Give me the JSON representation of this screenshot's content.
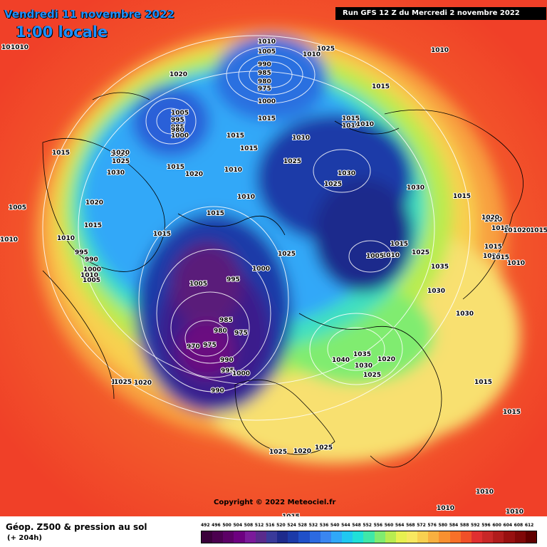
{
  "header": {
    "date_label": "Vendredi 11 novembre 2022",
    "time_label": "1:00 locale",
    "run_label": "Run GFS 12 Z du Mercredi 2 novembre 2022"
  },
  "copyright": "Copyright © 2022 Meteociel.fr",
  "legend": {
    "title": "Géop. Z500 & pression au sol",
    "subtitle": "(+ 204h)",
    "scale_values": [
      "492",
      "496",
      "500",
      "504",
      "508",
      "512",
      "516",
      "520",
      "524",
      "528",
      "532",
      "536",
      "540",
      "544",
      "548",
      "552",
      "556",
      "560",
      "564",
      "568",
      "572",
      "576",
      "580",
      "584",
      "588",
      "592",
      "596",
      "600",
      "604",
      "608",
      "612"
    ],
    "scale_colors": [
      "#3a003a",
      "#4b004f",
      "#5c0066",
      "#6d0080",
      "#7b1a9a",
      "#5a2a8c",
      "#3a3a9a",
      "#1e2a8c",
      "#1c3aa8",
      "#2050c8",
      "#2c6ae0",
      "#3a86f0",
      "#30a8f8",
      "#20c8f0",
      "#20e0d8",
      "#40e8a8",
      "#80ec70",
      "#b8ec50",
      "#e8f050",
      "#f8e860",
      "#f8d050",
      "#f8b040",
      "#f89030",
      "#f87028",
      "#f05028",
      "#e03030",
      "#c82828",
      "#b01c1c",
      "#981010",
      "#800808",
      "#600000"
    ]
  },
  "isobars": [
    {
      "text": "1010"
    },
    {
      "text": "1010"
    },
    {
      "text": "1005"
    },
    {
      "text": "990"
    },
    {
      "text": "985"
    },
    {
      "text": "980"
    },
    {
      "text": "975"
    },
    {
      "text": "1000"
    },
    {
      "text": "1020"
    },
    {
      "text": "1025"
    },
    {
      "text": "1010"
    },
    {
      "text": "1010"
    },
    {
      "text": "1015"
    },
    {
      "text": "1020"
    },
    {
      "text": "1010"
    },
    {
      "text": "1005"
    },
    {
      "text": "995"
    },
    {
      "text": "985"
    },
    {
      "text": "1000"
    },
    {
      "text": "980"
    },
    {
      "text": "1015"
    },
    {
      "text": "1015"
    },
    {
      "text": "1015"
    },
    {
      "text": "1010"
    },
    {
      "text": "1010"
    },
    {
      "text": "1015"
    },
    {
      "text": "1020"
    },
    {
      "text": "1025"
    },
    {
      "text": "1030"
    },
    {
      "text": "1015"
    },
    {
      "text": "1020"
    },
    {
      "text": "1015"
    },
    {
      "text": "1015"
    },
    {
      "text": "1010"
    },
    {
      "text": "1015"
    },
    {
      "text": "1010"
    },
    {
      "text": "1025"
    },
    {
      "text": "1025"
    },
    {
      "text": "1030"
    },
    {
      "text": "1010"
    },
    {
      "text": "1005"
    },
    {
      "text": "1020"
    },
    {
      "text": "1015"
    },
    {
      "text": "1010"
    },
    {
      "text": "995"
    },
    {
      "text": "990"
    },
    {
      "text": "1000"
    },
    {
      "text": "1005"
    },
    {
      "text": "1015"
    },
    {
      "text": "1005"
    },
    {
      "text": "995"
    },
    {
      "text": "1000"
    },
    {
      "text": "1025"
    },
    {
      "text": "1010"
    },
    {
      "text": "1005"
    },
    {
      "text": "1015"
    },
    {
      "text": "1025"
    },
    {
      "text": "1035"
    },
    {
      "text": "1015"
    },
    {
      "text": "1010"
    },
    {
      "text": "1020"
    },
    {
      "text": "1015"
    },
    {
      "text": "1010"
    },
    {
      "text": "1010"
    },
    {
      "text": "1020"
    },
    {
      "text": "1030"
    },
    {
      "text": "1030"
    },
    {
      "text": "1030"
    },
    {
      "text": "1010"
    },
    {
      "text": "1015"
    },
    {
      "text": "985"
    },
    {
      "text": "980"
    },
    {
      "text": "975"
    },
    {
      "text": "970"
    },
    {
      "text": "975"
    },
    {
      "text": "990"
    },
    {
      "text": "995"
    },
    {
      "text": "1000"
    },
    {
      "text": "1035"
    },
    {
      "text": "1040"
    },
    {
      "text": "1030"
    },
    {
      "text": "1020"
    },
    {
      "text": "1025"
    },
    {
      "text": "1025"
    },
    {
      "text": "1020"
    },
    {
      "text": "990"
    },
    {
      "text": "1015"
    },
    {
      "text": "1015"
    },
    {
      "text": "1025"
    },
    {
      "text": "1020"
    },
    {
      "text": "1025"
    },
    {
      "text": "1010"
    },
    {
      "text": "1010"
    },
    {
      "text": "1010"
    },
    {
      "text": "1015"
    },
    {
      "text": "1010"
    },
    {
      "text": "1015"
    },
    {
      "text": "1010"
    },
    {
      "text": "1020"
    },
    {
      "text": "1015"
    }
  ]
}
